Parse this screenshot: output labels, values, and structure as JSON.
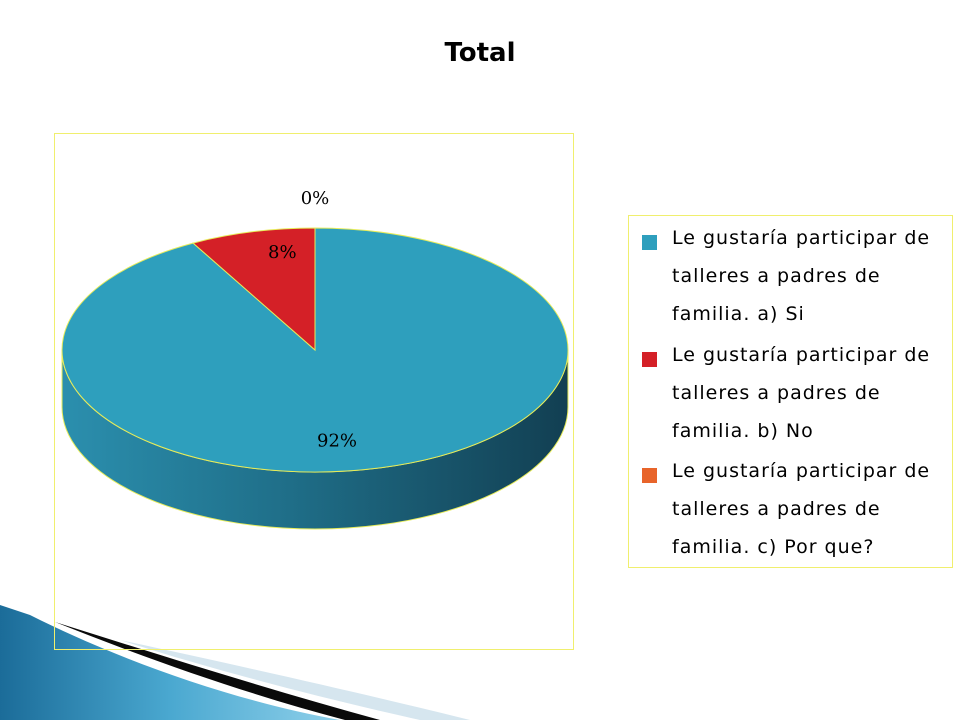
{
  "chart_data": {
    "type": "pie",
    "title": "Total",
    "categories": [
      "Le gustaría participar de talleres a padres de familia. a) Si",
      "Le gustaría participar de talleres a padres de familia. b) No",
      "Le gustaría participar de talleres a padres de familia. c) Por que?"
    ],
    "values": [
      92,
      8,
      0
    ],
    "data_labels": [
      "92%",
      "8%",
      "0%"
    ],
    "colors": [
      "#2e9fbd",
      "#d42027",
      "#e8642a"
    ],
    "style": "3d",
    "legend_position": "right"
  }
}
